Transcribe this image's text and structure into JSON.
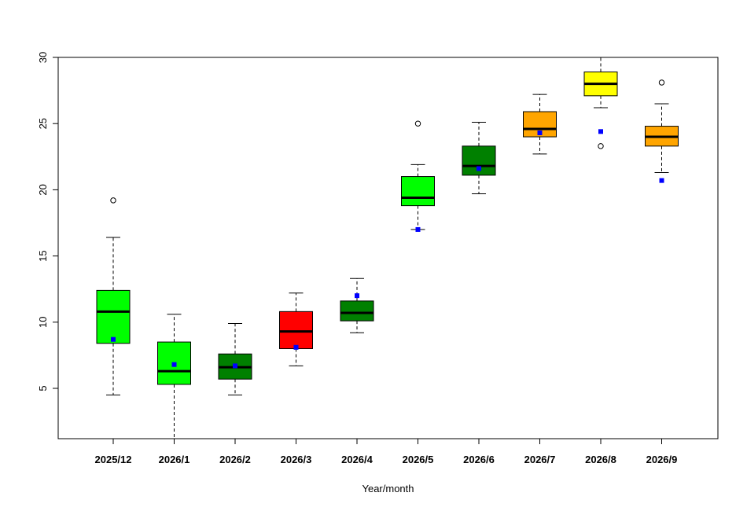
{
  "chart_data": {
    "type": "box",
    "title": "",
    "xlabel": "Year/month",
    "ylabel": "",
    "ylim": [
      1.2,
      30
    ],
    "yticks": [
      5,
      10,
      15,
      20,
      25,
      30
    ],
    "grid": false,
    "legend": "none",
    "mean_marker_color": "#0000ff",
    "categories": [
      "2025/12",
      "2026/1",
      "2026/2",
      "2026/3",
      "2026/4",
      "2026/5",
      "2026/6",
      "2026/7",
      "2026/8",
      "2026/9"
    ],
    "boxes": [
      {
        "category": "2025/12",
        "color": "#00ff00",
        "whisker_low": 4.5,
        "q1": 8.4,
        "median": 10.8,
        "q3": 12.4,
        "whisker_high": 16.4,
        "mean": 8.7,
        "outliers": [
          19.2
        ]
      },
      {
        "category": "2026/1",
        "color": "#00ff00",
        "whisker_low": 1.2,
        "q1": 5.3,
        "median": 6.3,
        "q3": 8.5,
        "whisker_high": 10.6,
        "mean": 6.8,
        "outliers": []
      },
      {
        "category": "2026/2",
        "color": "#008000",
        "whisker_low": 4.5,
        "q1": 5.7,
        "median": 6.6,
        "q3": 7.6,
        "whisker_high": 9.9,
        "mean": 6.7,
        "outliers": []
      },
      {
        "category": "2026/3",
        "color": "#ff0000",
        "whisker_low": 6.7,
        "q1": 8.0,
        "median": 9.3,
        "q3": 10.8,
        "whisker_high": 12.2,
        "mean": 8.1,
        "outliers": []
      },
      {
        "category": "2026/4",
        "color": "#008000",
        "whisker_low": 9.2,
        "q1": 10.1,
        "median": 10.7,
        "q3": 11.6,
        "whisker_high": 13.3,
        "mean": 12.0,
        "outliers": []
      },
      {
        "category": "2026/5",
        "color": "#00ff00",
        "whisker_low": 17.0,
        "q1": 18.8,
        "median": 19.4,
        "q3": 21.0,
        "whisker_high": 21.9,
        "mean": 17.0,
        "outliers": [
          25.0
        ]
      },
      {
        "category": "2026/6",
        "color": "#008000",
        "whisker_low": 19.7,
        "q1": 21.1,
        "median": 21.8,
        "q3": 23.3,
        "whisker_high": 25.1,
        "mean": 21.6,
        "outliers": []
      },
      {
        "category": "2026/7",
        "color": "#ffa500",
        "whisker_low": 22.7,
        "q1": 24.0,
        "median": 24.6,
        "q3": 25.9,
        "whisker_high": 27.2,
        "mean": 24.3,
        "outliers": []
      },
      {
        "category": "2026/8",
        "color": "#ffff00",
        "whisker_low": 26.2,
        "q1": 27.1,
        "median": 28.0,
        "q3": 28.9,
        "whisker_high": 30.0,
        "mean": 24.4,
        "outliers": [
          23.3
        ]
      },
      {
        "category": "2026/9",
        "color": "#ffa500",
        "whisker_low": 21.3,
        "q1": 23.3,
        "median": 24.0,
        "q3": 24.8,
        "whisker_high": 26.5,
        "mean": 20.7,
        "outliers": [
          28.1
        ]
      }
    ]
  }
}
